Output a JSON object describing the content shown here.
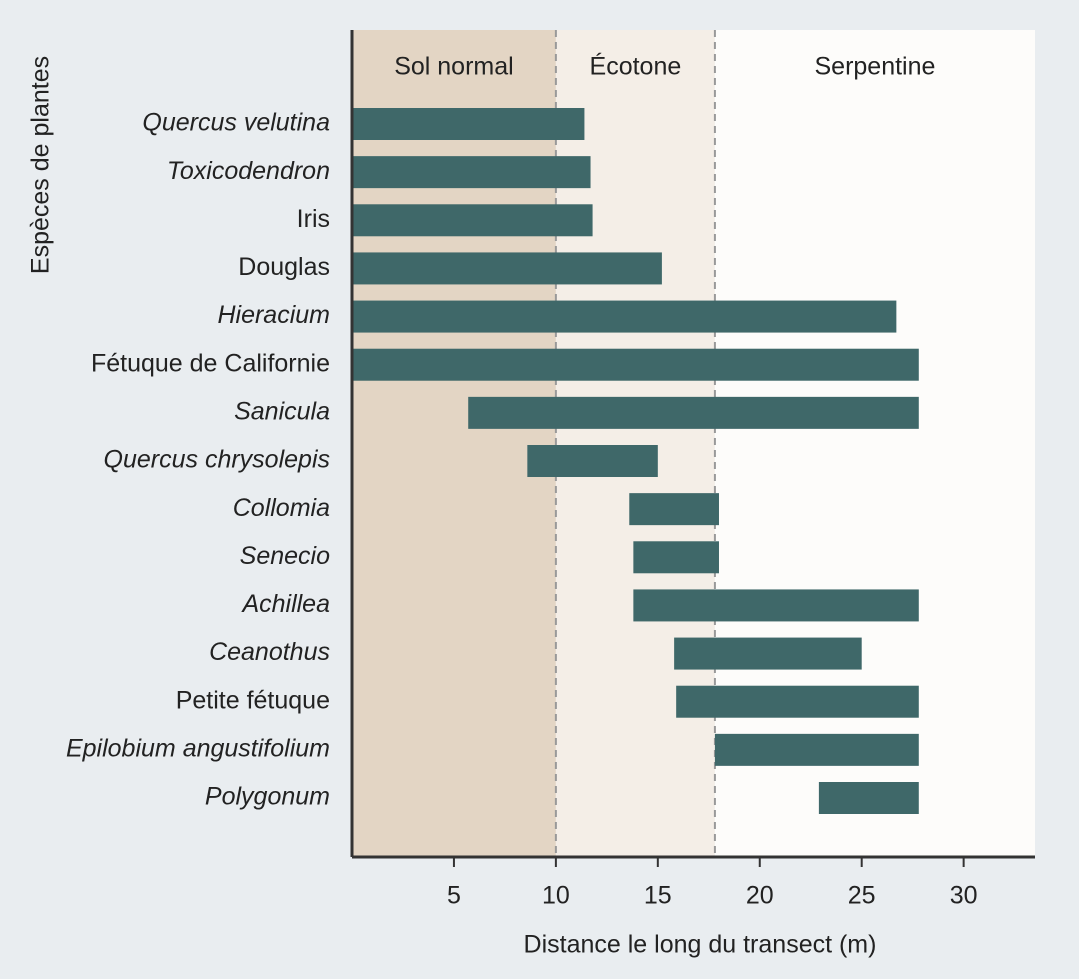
{
  "chart_data": {
    "type": "range-bar",
    "x_label": "Distance le long du transect (m)",
    "y_label": "Espèces de plantes",
    "categories": [
      "Quercus velutina",
      "Toxicodendron",
      "Iris",
      "Douglas",
      "Hieracium",
      "Fétuque de Californie",
      "Sanicula",
      "Quercus chrysolepis",
      "Collomia",
      "Senecio",
      "Achillea",
      "Ceanothus",
      "Petite fétuque",
      "Epilobium angustifolium",
      "Polygonum"
    ],
    "italic": [
      true,
      true,
      false,
      false,
      true,
      false,
      true,
      true,
      true,
      true,
      true,
      true,
      false,
      true,
      true
    ],
    "starts": [
      0,
      0,
      0,
      0,
      0,
      0,
      5.7,
      8.6,
      13.6,
      13.8,
      13.8,
      15.8,
      15.9,
      17.8,
      22.9
    ],
    "ends": [
      11.4,
      11.7,
      11.8,
      15.2,
      26.7,
      27.8,
      27.8,
      15,
      18,
      18,
      27.8,
      25,
      27.8,
      27.8,
      27.8
    ],
    "color": "#3f6869",
    "zones": [
      {
        "label": "Sol normal",
        "from": 0,
        "to": 10,
        "color": "#e3d5c4"
      },
      {
        "label": "Écotone",
        "from": 10,
        "to": 17.8,
        "color": "#f4eee7"
      },
      {
        "label": "Serpentine",
        "from": 17.8,
        "color": "#fdfcfa"
      }
    ],
    "xlim": [
      0,
      33.5
    ],
    "xticks": [
      5,
      10,
      15,
      20,
      25,
      30
    ]
  }
}
